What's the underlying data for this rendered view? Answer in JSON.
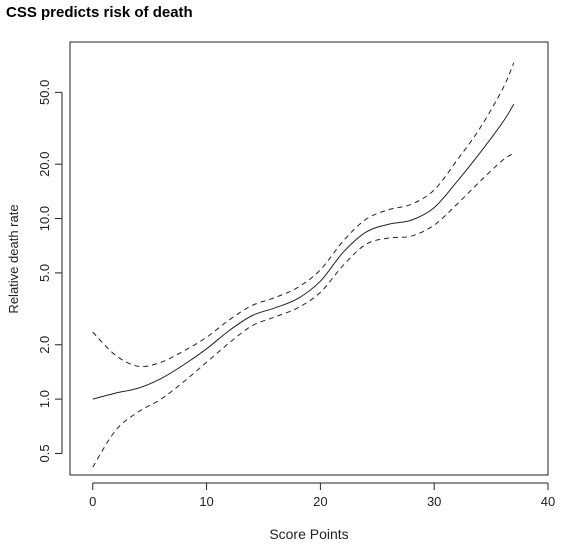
{
  "chart_data": {
    "type": "line",
    "title": "CSS predicts risk of death",
    "xlabel": "Score Points",
    "ylabel": "Relative death rate",
    "xlim": [
      -2,
      40
    ],
    "ylim": [
      0.38,
      95
    ],
    "y_scale": "log",
    "x_ticks": [
      0,
      10,
      20,
      30,
      40
    ],
    "x_tick_labels": [
      "0",
      "10",
      "20",
      "30",
      "40"
    ],
    "y_ticks": [
      0.5,
      1.0,
      2.0,
      5.0,
      10.0,
      20.0,
      50.0
    ],
    "y_tick_labels": [
      "0.5",
      "1.0",
      "2.0",
      "5.0",
      "10.0",
      "20.0",
      "50.0"
    ],
    "grid": false,
    "legend": "none",
    "series": [
      {
        "style": "solid",
        "x": [
          0,
          2,
          4,
          6,
          8,
          10,
          12,
          14,
          16,
          18,
          20,
          22,
          24,
          26,
          28,
          30,
          32,
          34,
          36,
          37
        ],
        "y": [
          1.0,
          1.08,
          1.15,
          1.3,
          1.55,
          1.9,
          2.4,
          2.9,
          3.2,
          3.6,
          4.5,
          6.5,
          8.4,
          9.3,
          9.8,
          11.5,
          16.0,
          23.0,
          34.0,
          43.0
        ]
      },
      {
        "style": "dashed",
        "x": [
          0,
          2,
          4,
          6,
          8,
          10,
          12,
          14,
          16,
          18,
          20,
          22,
          24,
          26,
          28,
          30,
          32,
          34,
          36,
          37
        ],
        "y": [
          2.35,
          1.75,
          1.52,
          1.6,
          1.85,
          2.2,
          2.75,
          3.3,
          3.65,
          4.15,
          5.2,
          7.5,
          9.9,
          11.2,
          12.0,
          14.4,
          21.0,
          31.5,
          52.0,
          73.0
        ]
      },
      {
        "style": "dashed",
        "x": [
          0,
          2,
          4,
          6,
          8,
          10,
          12,
          14,
          16,
          18,
          20,
          22,
          24,
          26,
          28,
          30,
          32,
          34,
          36,
          37
        ],
        "y": [
          0.42,
          0.67,
          0.85,
          1.0,
          1.25,
          1.6,
          2.05,
          2.55,
          2.85,
          3.2,
          3.9,
          5.5,
          7.2,
          7.8,
          8.0,
          9.2,
          12.0,
          16.0,
          21.0,
          23.0
        ]
      }
    ]
  }
}
